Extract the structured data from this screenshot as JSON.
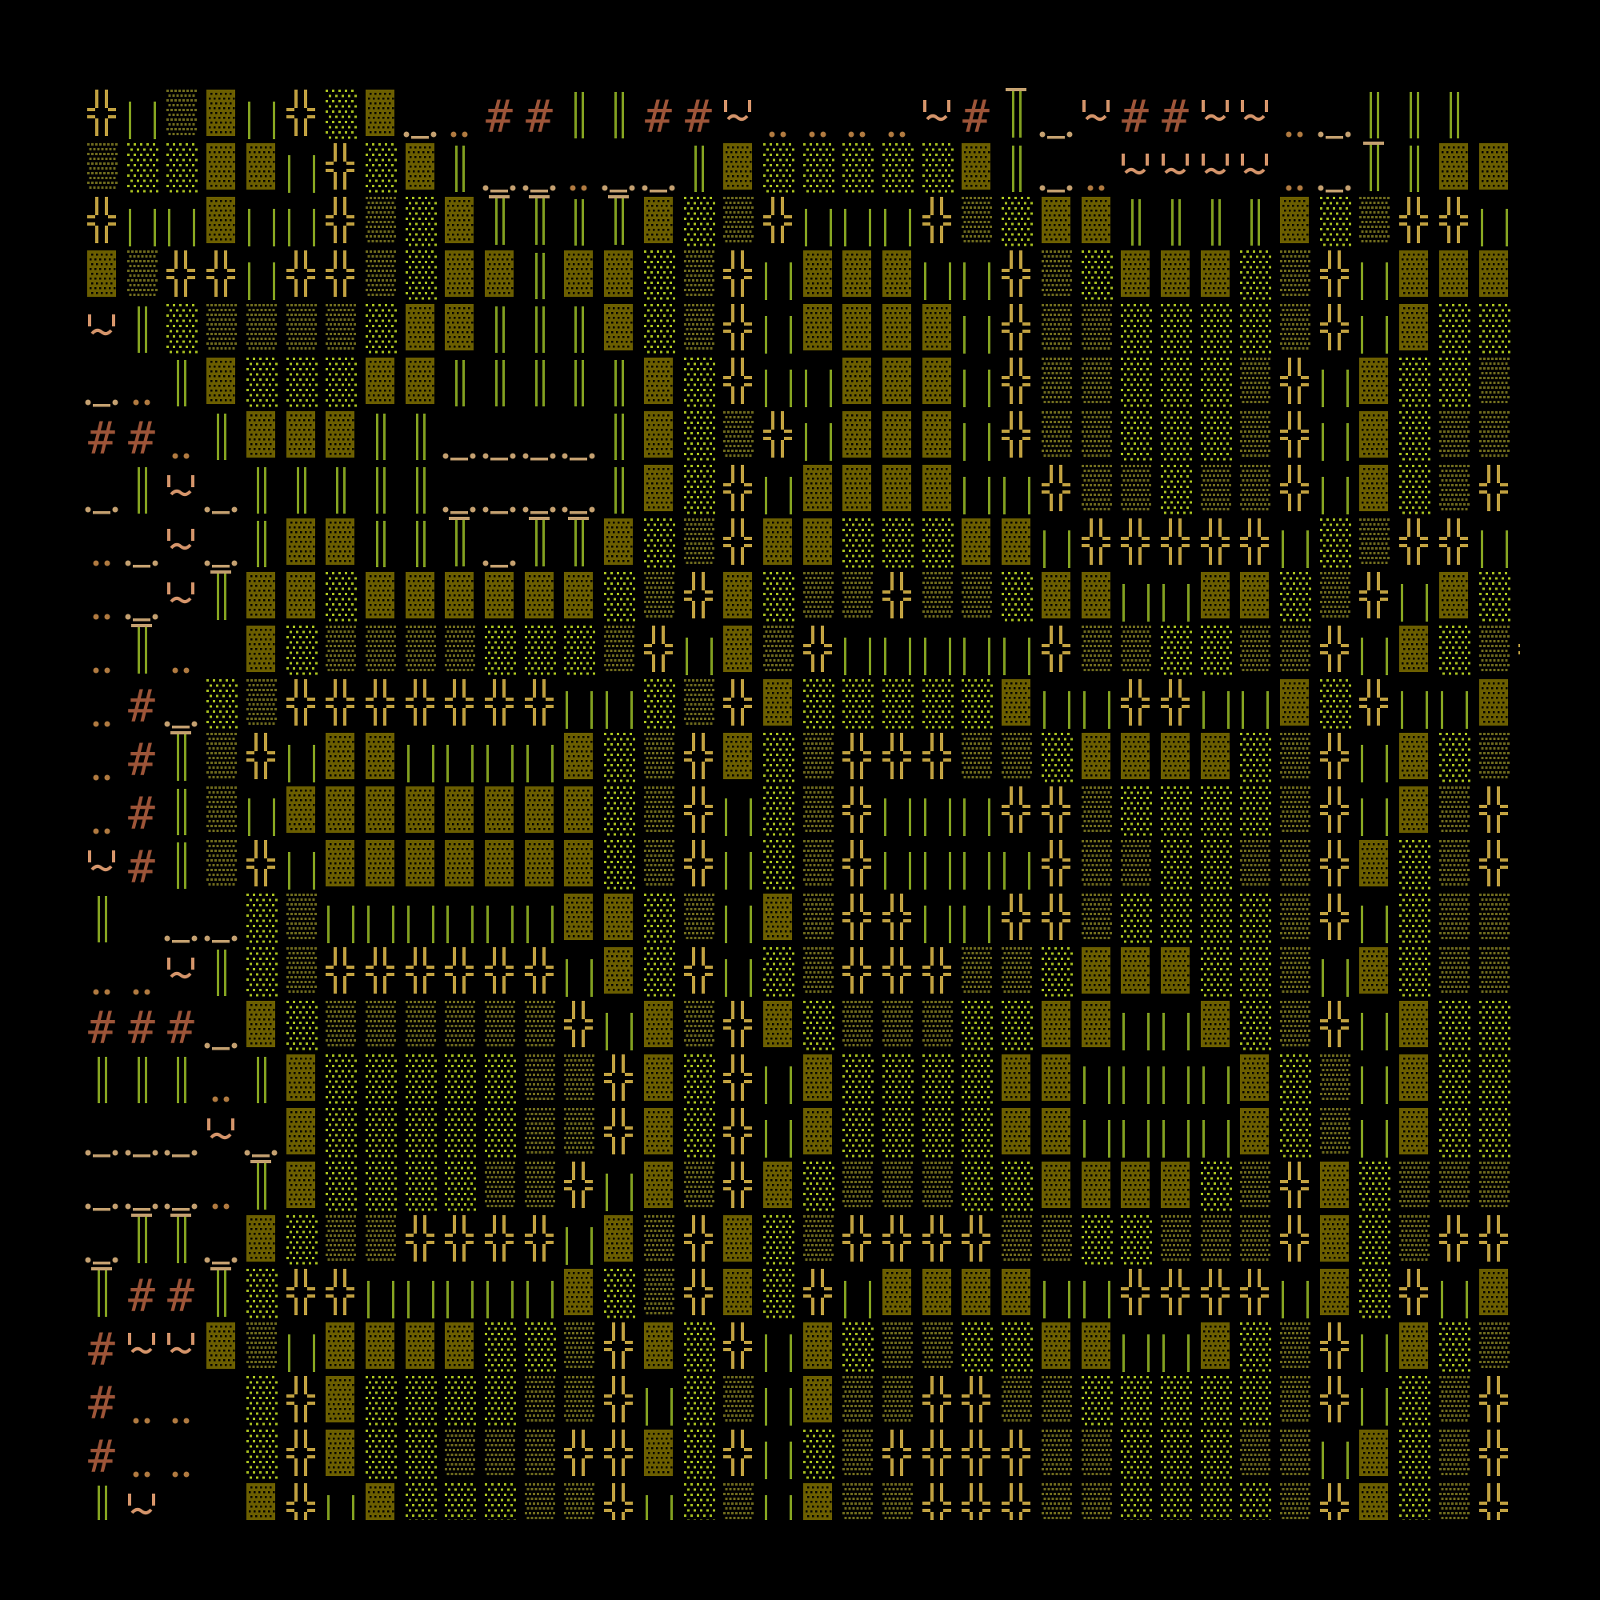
{
  "glyphs": {
    "X": "╬",
    "B": "▓",
    "M": "▒",
    "L": "░",
    "D": "║",
    "W": "| |",
    "T": "╥",
    "#": "#",
    ":": "..",
    "~": "'~'",
    "_": "._.",
    " ": ""
  },
  "colors": {
    "background": "#000000",
    "cross": "#c0a040",
    "dense_block": "#6b5e00",
    "medium_shade": "#6e6a1e",
    "light_shade": "#a8c020",
    "double_line": "#82a020",
    "hash": "#9c5438",
    "dots": "#b07a40",
    "tilde": "#d4946a",
    "underscore": "#c4a070"
  },
  "rows": [
    "XWMBWXLB_:##DD##~::::~#T_~##~~:_DDD",
    "MLLBBWXLBD__:__DBLLLLLBD_:~~~~:_TDBB",
    "XWWBWWXMLBTTDTBLMXWWWXMLBBDDDDBLMXXW",
    "BMXXWXXMLBBDBBLMXWBBBWWXMLBBBLMXWBBB",
    "~DLMMMMLBBDDDBLMXWBBBBWXMMLLLLMXWBLL",
    "_:DBLLLBBDDDDDBLXWWBBBWXMMLLLMXWBLLM",
    "##:DBBBDD____DBLMXWBBBWXMMLLLMXWBLMM",
    "_D~_DDDDD____DBLXWBBBBWWXMMLMMXWBLMX",
    ":_~_DBBDDT_TTBLMXBBLLLBBWXXXXXWLMXXW",
    ":_~TBBLBBBBBBLMXBLMMXMMLBBWWBBLMXWBL",
    ":T: BLMMMMLLLMXWBMXWWWWWXMMLLMMXWBLMX",
    ":#_LMXXXXXXXWWLMXBLLLLLBWWXXWWBLXWWB",
    ":#TMXWBBWWWWBLMXBLMXXXMMLBBBBLMXWBLM",
    ":#DMWBBBBBBBBLMXWLMXWWWXXMLLLLMXWBMX",
    "~#DMXWBBBBBBBLMXWLMXWWWWXMMLLMMXBLMX",
    "D __LMWWWWWWBBLMWBMXXWWXXMLLLLMXWLMM",
    "::~DLMXXXXXXWBLXWLMXXXMMLBBBLLMWBLMM",
    "###_BLMMMMMMXWBMXBLMMMLLBBWWBLMXWBLL",
    "DDD:DBLLLLLMMXBLXWBLLLLBBWWWWBLMWBLL",
    "___~_BLLLLLMMXBLXWBLLLLBBWWWWBLMWBLL",
    "___:TBLLLLMMXWBMXBLMMMLLBBBBLMXBLMMM",
    "_TT_BLMMXXXXWBMXBLMXXXXMMLLMMMXBLMXX",
    "T##TLXXWWWWWBLMXBLXWBBBBWWXXXXWBLXWB",
    "#~~BMWBBBBLLMXBLXWBLMMLLBBWWBLMXWBLM",
    "#:: LXBLLLLMMXWLMWBMMXXMMLLLLLMXWLMX",
    "#:: LXBLLMMMXXBLXWLMXXXXMMLLLMMWBLMX",
    "D~  BXWBLLLMMXWLMWBMMXXXMMLLLLMXBLMX"
  ]
}
